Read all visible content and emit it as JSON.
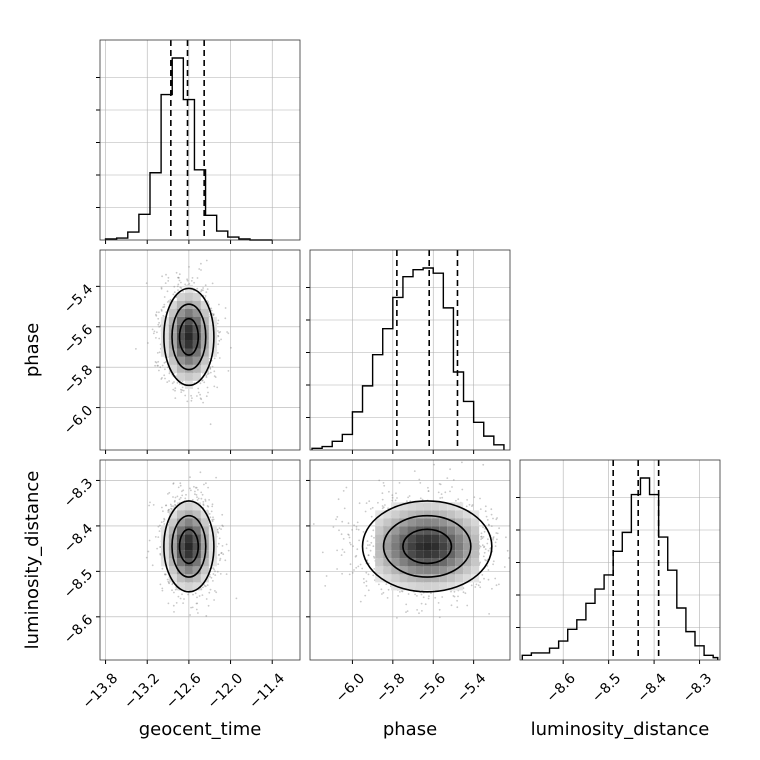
{
  "chart_data": {
    "type": "corner",
    "parameters": [
      "geocent_time",
      "phase",
      "luminosity_distance"
    ],
    "axis_labels": {
      "x": [
        "geocent_time",
        "phase",
        "luminosity_distance"
      ],
      "y": [
        "",
        "phase",
        "luminosity_distance"
      ]
    },
    "ranges": {
      "geocent_time": [
        -13.88,
        -11.0
      ],
      "phase": [
        -6.21,
        -5.22
      ],
      "luminosity_distance": [
        -8.695,
        -8.255
      ]
    },
    "ticks": {
      "geocent_time": [
        -13.8,
        -13.2,
        -12.6,
        -12.0,
        -11.4
      ],
      "phase": [
        -6.0,
        -5.8,
        -5.6,
        -5.4
      ],
      "luminosity_distance": [
        -8.6,
        -8.5,
        -8.4,
        -8.3
      ]
    },
    "tick_labels": {
      "geocent_time": [
        "−13.8",
        "−13.2",
        "−12.6",
        "−12.0",
        "−11.4"
      ],
      "phase": [
        "−6.0",
        "−5.8",
        "−5.6",
        "−5.4"
      ],
      "luminosity_distance": [
        "−8.6",
        "−8.5",
        "−8.4",
        "−8.3"
      ]
    },
    "grid": true,
    "histograms": [
      {
        "parameter": "geocent_time",
        "bins": [
          -13.8,
          -13.64,
          -13.48,
          -13.32,
          -13.16,
          -13.0,
          -12.84,
          -12.68,
          -12.52,
          -12.36,
          -12.2,
          -12.04,
          -11.88,
          -11.72,
          -11.56,
          -11.4
        ],
        "counts": [
          1,
          2,
          8,
          26,
          68,
          147,
          184,
          142,
          71,
          25,
          9,
          3,
          1,
          0,
          0
        ],
        "quantiles": [
          -12.86,
          -12.62,
          -12.38
        ]
      },
      {
        "parameter": "phase",
        "bins": [
          -6.2,
          -6.15,
          -6.1,
          -6.05,
          -6.0,
          -5.95,
          -5.9,
          -5.85,
          -5.8,
          -5.75,
          -5.7,
          -5.65,
          -5.6,
          -5.55,
          -5.5,
          -5.45,
          -5.4,
          -5.35,
          -5.3,
          -5.25
        ],
        "counts": [
          1,
          2,
          5,
          9,
          22,
          37,
          55,
          70,
          88,
          100,
          104,
          105,
          102,
          82,
          45,
          28,
          16,
          8,
          3
        ],
        "quantiles": [
          -5.78,
          -5.62,
          -5.48
        ]
      },
      {
        "parameter": "luminosity_distance",
        "bins": [
          -8.69,
          -8.67,
          -8.65,
          -8.63,
          -8.61,
          -8.59,
          -8.57,
          -8.55,
          -8.53,
          -8.51,
          -8.49,
          -8.47,
          -8.45,
          -8.43,
          -8.41,
          -8.39,
          -8.37,
          -8.35,
          -8.33,
          -8.31,
          -8.29,
          -8.27,
          -8.26
        ],
        "counts": [
          2,
          3,
          3,
          5,
          8,
          13,
          17,
          24,
          30,
          36,
          46,
          54,
          70,
          77,
          70,
          52,
          38,
          22,
          12,
          6,
          2,
          1
        ],
        "quantiles": [
          -8.49,
          -8.435,
          -8.39
        ]
      }
    ],
    "scatter_panels": [
      {
        "x": "geocent_time",
        "y": "phase",
        "center": [
          -12.6,
          -5.65
        ],
        "sigma": [
          0.18,
          0.12
        ]
      },
      {
        "x": "geocent_time",
        "y": "luminosity_distance",
        "center": [
          -12.6,
          -8.445
        ],
        "sigma": [
          0.18,
          0.05
        ]
      },
      {
        "x": "phase",
        "y": "luminosity_distance",
        "center": [
          -5.63,
          -8.445
        ],
        "sigma": [
          0.16,
          0.05
        ]
      }
    ]
  }
}
